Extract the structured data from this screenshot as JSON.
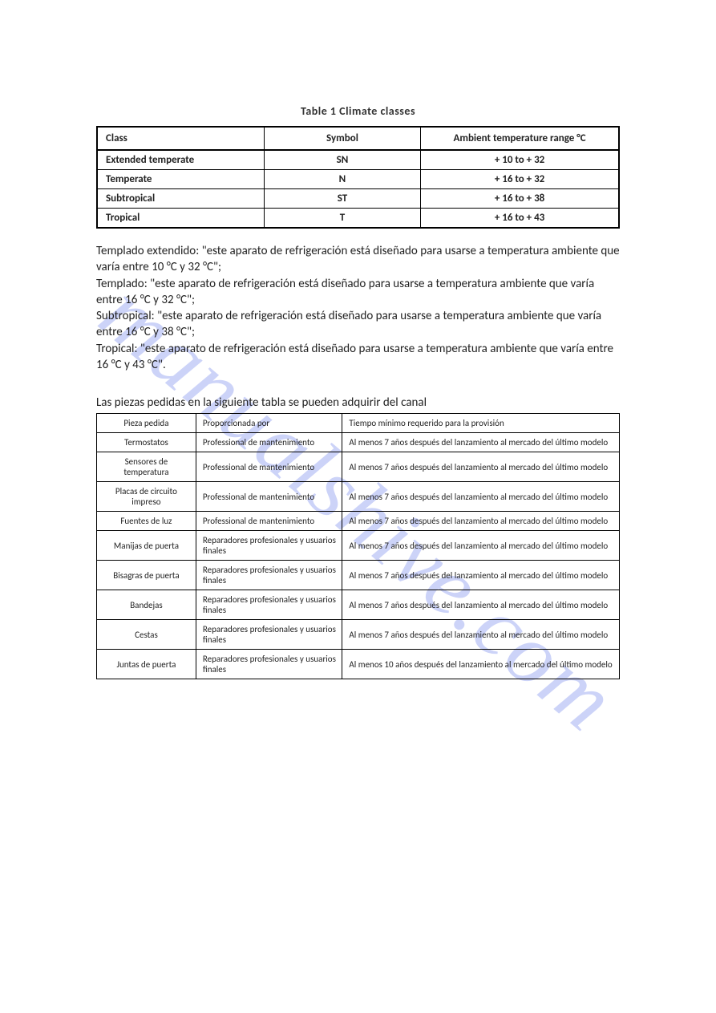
{
  "watermark": "manualshive.com",
  "table1": {
    "caption": "Table 1    Climate classes",
    "headers": {
      "class": "Class",
      "symbol": "Symbol",
      "range": "Ambient temperature range °C"
    },
    "rows": [
      {
        "class": "Extended temperate",
        "symbol": "SN",
        "range": "+ 10 to + 32"
      },
      {
        "class": "Temperate",
        "symbol": "N",
        "range": "+ 16  to + 32"
      },
      {
        "class": "Subtropical",
        "symbol": "ST",
        "range": "+ 16  to + 38"
      },
      {
        "class": "Tropical",
        "symbol": "T",
        "range": "+ 16  to + 43"
      }
    ]
  },
  "definitions": {
    "p1": "Templado extendido: \"este aparato de refrigeración está diseñado para usarse a temperatura ambiente que varía entre 10 °C y 32 °C\";",
    "p2": "Templado: \"este aparato de refrigeración está diseñado para usarse a temperatura ambiente que varía entre 16 °C y 32 °C\";",
    "p3": "Subtropical: \"este aparato de refrigeración está diseñado para usarse a temperatura ambiente que varía entre 16 °C y 38 °C\";",
    "p4": "Tropical: \"este aparato de refrigeración está diseñado para usarse a temperatura ambiente que varía entre 16 °C y 43 °C\"."
  },
  "table2": {
    "caption": "Las piezas pedidas en la siguiente tabla se pueden adquirir del canal",
    "headers": {
      "part": "Pieza pedida",
      "provider": "Proporcionada por",
      "time": "Tiempo mínimo requerido para la provisión"
    },
    "rows": [
      {
        "part": "Termostatos",
        "provider": "Professional de mantenimiento",
        "time": "Al menos 7 años después del lanzamiento al mercado del último modelo"
      },
      {
        "part": "Sensores de temperatura",
        "provider": "Professional de mantenimiento",
        "time": "Al menos 7 años después del lanzamiento al mercado del último modelo"
      },
      {
        "part": "Placas de circuito impreso",
        "provider": "Professional de mantenimiento",
        "time": "Al menos 7 años después del lanzamiento al mercado del último modelo"
      },
      {
        "part": "Fuentes de luz",
        "provider": "Professional de mantenimiento",
        "time": "Al menos 7 años después del lanzamiento al mercado del último modelo"
      },
      {
        "part": "Manijas de puerta",
        "provider": "Reparadores profesionales y usuarios finales",
        "time": "Al menos 7 años después del lanzamiento al mercado del último modelo"
      },
      {
        "part": "Bisagras de puerta",
        "provider": "Reparadores profesionales y usuarios finales",
        "time": "Al menos 7 años después del lanzamiento al mercado del último modelo"
      },
      {
        "part": "Bandejas",
        "provider": "Reparadores profesionales y usuarios finales",
        "time": "Al menos 7 años después del lanzamiento al mercado del último modelo"
      },
      {
        "part": "Cestas",
        "provider": "Reparadores profesionales y usuarios finales",
        "time": "Al menos 7 años después del lanzamiento al mercado del último modelo"
      },
      {
        "part": "Juntas de puerta",
        "provider": "Reparadores profesionales y usuarios finales",
        "time": "Al menos 10 años después del lanzamiento al mercado del último modelo"
      }
    ]
  }
}
